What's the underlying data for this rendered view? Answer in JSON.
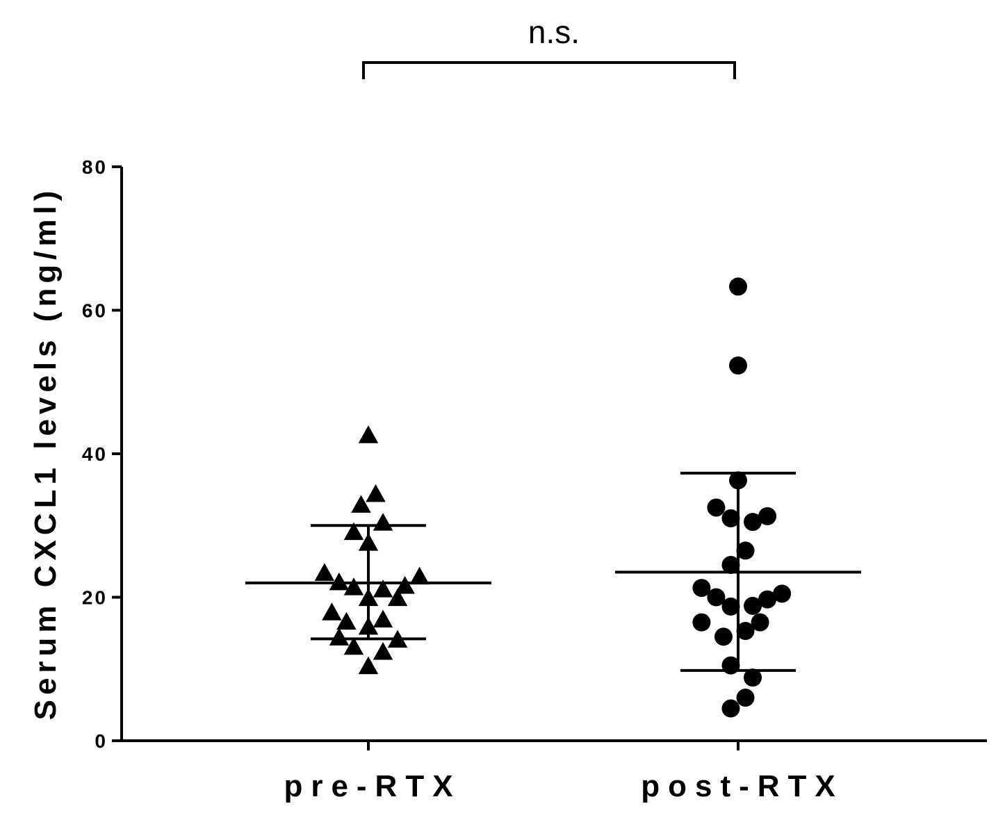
{
  "chart_data": {
    "type": "scatter",
    "ylabel": "Serum CXCL1 levels (ng/ml)",
    "xlabel": "",
    "ylim": [
      0,
      80
    ],
    "yticks": [
      0,
      20,
      40,
      60,
      80
    ],
    "categories": [
      "pre-RTX",
      "post-RTX"
    ],
    "grid": false,
    "legend": "none",
    "significance": {
      "label": "n.s.",
      "between": [
        "pre-RTX",
        "post-RTX"
      ]
    },
    "series": [
      {
        "category": "pre-RTX",
        "marker": "triangle",
        "color": "#000000",
        "points": [
          {
            "offset": 0.0,
            "y": 42.5
          },
          {
            "offset": 0.04,
            "y": 34.3
          },
          {
            "offset": -0.04,
            "y": 32.8
          },
          {
            "offset": 0.08,
            "y": 30.3
          },
          {
            "offset": -0.08,
            "y": 29.0
          },
          {
            "offset": 0.0,
            "y": 27.5
          },
          {
            "offset": -0.24,
            "y": 23.3
          },
          {
            "offset": 0.28,
            "y": 22.8
          },
          {
            "offset": -0.16,
            "y": 22.0
          },
          {
            "offset": 0.2,
            "y": 21.5
          },
          {
            "offset": -0.08,
            "y": 21.3
          },
          {
            "offset": 0.08,
            "y": 21.0
          },
          {
            "offset": 0.0,
            "y": 19.8
          },
          {
            "offset": 0.16,
            "y": 19.8
          },
          {
            "offset": -0.2,
            "y": 17.8
          },
          {
            "offset": 0.08,
            "y": 16.8
          },
          {
            "offset": -0.12,
            "y": 16.5
          },
          {
            "offset": 0.0,
            "y": 15.8
          },
          {
            "offset": -0.16,
            "y": 14.3
          },
          {
            "offset": 0.16,
            "y": 14.0
          },
          {
            "offset": -0.08,
            "y": 13.0
          },
          {
            "offset": 0.08,
            "y": 12.3
          },
          {
            "offset": 0.0,
            "y": 10.3
          }
        ],
        "mean": 22.0,
        "sd_upper": 30.0,
        "sd_lower": 14.2
      },
      {
        "category": "post-RTX",
        "marker": "circle",
        "color": "#000000",
        "points": [
          {
            "offset": 0.0,
            "y": 63.3
          },
          {
            "offset": 0.0,
            "y": 52.3
          },
          {
            "offset": 0.0,
            "y": 36.3
          },
          {
            "offset": -0.12,
            "y": 32.5
          },
          {
            "offset": 0.16,
            "y": 31.3
          },
          {
            "offset": -0.04,
            "y": 31.0
          },
          {
            "offset": 0.08,
            "y": 30.5
          },
          {
            "offset": 0.04,
            "y": 26.5
          },
          {
            "offset": -0.04,
            "y": 24.5
          },
          {
            "offset": -0.2,
            "y": 21.3
          },
          {
            "offset": 0.24,
            "y": 20.5
          },
          {
            "offset": -0.12,
            "y": 20.0
          },
          {
            "offset": 0.16,
            "y": 19.7
          },
          {
            "offset": 0.08,
            "y": 18.8
          },
          {
            "offset": -0.04,
            "y": 18.7
          },
          {
            "offset": -0.2,
            "y": 16.5
          },
          {
            "offset": 0.12,
            "y": 16.5
          },
          {
            "offset": 0.04,
            "y": 15.3
          },
          {
            "offset": -0.08,
            "y": 14.5
          },
          {
            "offset": -0.04,
            "y": 10.5
          },
          {
            "offset": 0.08,
            "y": 8.8
          },
          {
            "offset": 0.04,
            "y": 6.0
          },
          {
            "offset": -0.04,
            "y": 4.5
          }
        ],
        "mean": 23.5,
        "sd_upper": 37.3,
        "sd_lower": 9.8
      }
    ]
  }
}
